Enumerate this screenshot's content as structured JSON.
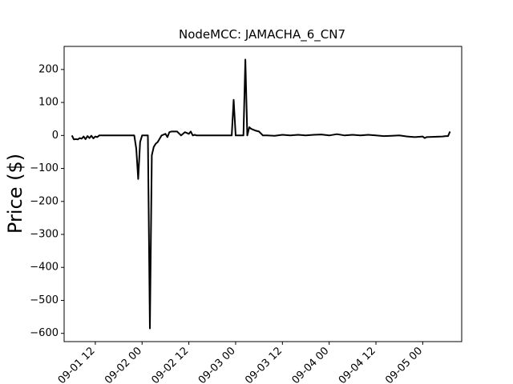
{
  "chart_data": {
    "type": "line",
    "title": "NodeMCC: JAMACHA_6_CN7",
    "xlabel": "",
    "ylabel": "Price ($)",
    "ylim": [
      -625,
      270
    ],
    "xlim": [
      "2022-09-01 04:00",
      "2022-09-05 10:00"
    ],
    "grid": false,
    "y_ticks": [
      200,
      100,
      0,
      -100,
      -200,
      -300,
      -400,
      -500,
      -600
    ],
    "y_tick_labels": [
      "200",
      "100",
      "0",
      "−100",
      "−200",
      "−300",
      "−400",
      "−500",
      "−600"
    ],
    "x_ticks": [
      "2022-09-01 12:00",
      "2022-09-02 00:00",
      "2022-09-02 12:00",
      "2022-09-03 00:00",
      "2022-09-03 12:00",
      "2022-09-04 00:00",
      "2022-09-04 12:00",
      "2022-09-05 00:00"
    ],
    "x_tick_labels": [
      "09-01 12",
      "09-02 00",
      "09-02 12",
      "09-03 00",
      "09-03 12",
      "09-04 00",
      "09-04 12",
      "09-05 00"
    ],
    "series": [
      {
        "color": "#000000",
        "x": [
          "2022-09-01 06:00",
          "2022-09-01 06:30",
          "2022-09-01 07:00",
          "2022-09-01 07:30",
          "2022-09-01 08:00",
          "2022-09-01 08:30",
          "2022-09-01 09:00",
          "2022-09-01 09:30",
          "2022-09-01 10:00",
          "2022-09-01 10:30",
          "2022-09-01 11:00",
          "2022-09-01 11:30",
          "2022-09-01 12:00",
          "2022-09-01 12:30",
          "2022-09-01 13:00",
          "2022-09-01 14:00",
          "2022-09-01 16:00",
          "2022-09-01 18:00",
          "2022-09-01 20:00",
          "2022-09-01 22:00",
          "2022-09-01 22:30",
          "2022-09-01 23:00",
          "2022-09-01 23:30",
          "2022-09-02 00:00",
          "2022-09-02 00:30",
          "2022-09-02 01:00",
          "2022-09-02 01:30",
          "2022-09-02 02:00",
          "2022-09-02 02:30",
          "2022-09-02 03:00",
          "2022-09-02 03:30",
          "2022-09-02 04:00",
          "2022-09-02 05:00",
          "2022-09-02 06:00",
          "2022-09-02 06:30",
          "2022-09-02 07:00",
          "2022-09-02 07:30",
          "2022-09-02 08:00",
          "2022-09-02 09:00",
          "2022-09-02 10:00",
          "2022-09-02 11:00",
          "2022-09-02 12:00",
          "2022-09-02 12:30",
          "2022-09-02 13:00",
          "2022-09-02 13:30",
          "2022-09-02 14:00",
          "2022-09-02 16:00",
          "2022-09-02 20:00",
          "2022-09-02 23:00",
          "2022-09-02 23:30",
          "2022-09-03 00:00",
          "2022-09-03 00:30",
          "2022-09-03 01:00",
          "2022-09-03 02:00",
          "2022-09-03 02:30",
          "2022-09-03 03:00",
          "2022-09-03 03:30",
          "2022-09-03 04:00",
          "2022-09-03 05:00",
          "2022-09-03 06:00",
          "2022-09-03 07:00",
          "2022-09-03 08:00",
          "2022-09-03 10:00",
          "2022-09-03 12:00",
          "2022-09-03 14:00",
          "2022-09-03 16:00",
          "2022-09-03 18:00",
          "2022-09-03 20:00",
          "2022-09-03 22:00",
          "2022-09-04 00:00",
          "2022-09-04 02:00",
          "2022-09-04 04:00",
          "2022-09-04 06:00",
          "2022-09-04 08:00",
          "2022-09-04 10:00",
          "2022-09-04 12:00",
          "2022-09-04 14:00",
          "2022-09-04 16:00",
          "2022-09-04 18:00",
          "2022-09-04 20:00",
          "2022-09-04 22:00",
          "2022-09-05 00:00",
          "2022-09-05 00:30",
          "2022-09-05 01:00",
          "2022-09-05 03:00",
          "2022-09-05 05:00",
          "2022-09-05 06:00",
          "2022-09-05 06:30",
          "2022-09-05 07:00"
        ],
        "y": [
          0,
          -12,
          -11,
          -12,
          -8,
          -10,
          -3,
          -11,
          -2,
          -8,
          -1,
          -9,
          -3,
          -5,
          0,
          0,
          0,
          0,
          0,
          0,
          -40,
          -132,
          -20,
          0,
          0,
          0,
          0,
          -585,
          -60,
          -35,
          -25,
          -20,
          0,
          5,
          -5,
          10,
          12,
          12,
          12,
          0,
          10,
          5,
          12,
          0,
          2,
          0,
          0,
          0,
          0,
          108,
          0,
          0,
          0,
          0,
          230,
          0,
          25,
          20,
          15,
          12,
          0,
          0,
          -1,
          2,
          0,
          2,
          0,
          2,
          3,
          0,
          4,
          0,
          2,
          0,
          2,
          0,
          -2,
          -1,
          0,
          -3,
          -5,
          -3,
          -8,
          -5,
          -4,
          -3,
          -2,
          -2,
          12
        ]
      }
    ]
  }
}
